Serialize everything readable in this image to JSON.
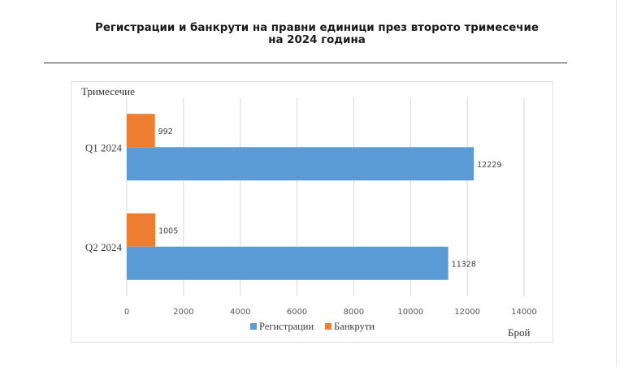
{
  "title_line1": "Регистрации и банкрути на правни единици през второто тримесечие",
  "title_line2": "на 2024 година",
  "chart_data": {
    "type": "bar",
    "orientation": "horizontal",
    "categories": [
      "Q1 2024",
      "Q2 2024"
    ],
    "series": [
      {
        "name": "Регистрации",
        "color": "#5b9bd5",
        "values": [
          12229,
          11328
        ]
      },
      {
        "name": "Банкрути",
        "color": "#ed7d31",
        "values": [
          992,
          1005
        ]
      }
    ],
    "ylabel": "Тримесечие",
    "xlabel": "Брой",
    "xlim": [
      0,
      14000
    ],
    "xticks": [
      0,
      2000,
      4000,
      6000,
      8000,
      10000,
      12000,
      14000
    ],
    "grid": true,
    "legend": "bottom"
  }
}
